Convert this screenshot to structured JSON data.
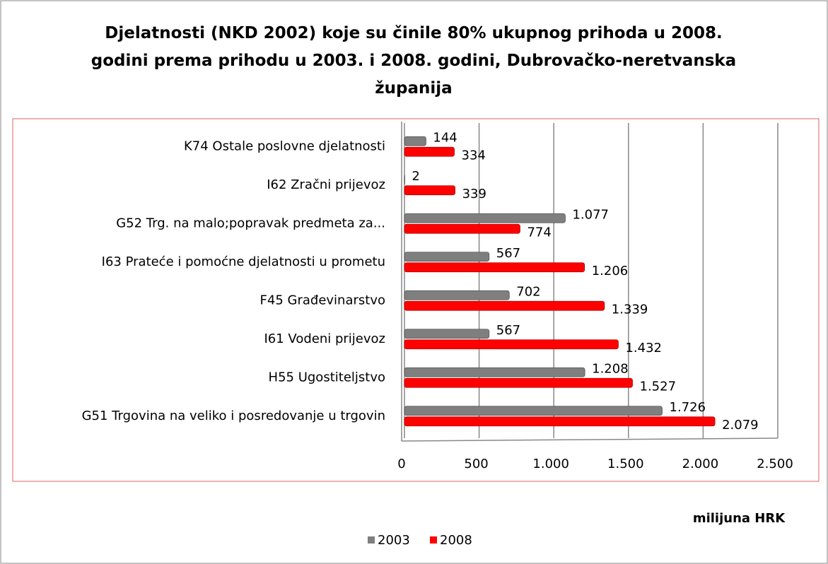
{
  "chart_data": {
    "type": "hbar",
    "title": "Djelatnosti (NKD 2002) koje su činile 80% ukupnog prihoda u 2008. godini prema prihodu u 2003. i 2008. godini, Dubrovačko-neretvanska županija",
    "x_label": "milijuna HRK",
    "categories": [
      "K74 Ostale poslovne djelatnosti",
      "I62 Zračni prijevoz",
      "G52 Trg. na malo;popravak predmeta za...",
      "I63 Prateće i pomoćne djelatnosti u prometu",
      "F45 Građevinarstvo",
      "I61 Vodeni prijevoz",
      "H55 Ugostiteljstvo",
      "G51 Trgovina na veliko i posredovanje u trgovin"
    ],
    "series": [
      {
        "name": "2003",
        "color": "#7f7f7f",
        "values": [
          144,
          2,
          1077,
          567,
          702,
          567,
          1208,
          1726
        ],
        "value_labels": [
          "144",
          "2",
          "1.077",
          "567",
          "702",
          "567",
          "1.208",
          "1.726"
        ]
      },
      {
        "name": "2008",
        "color": "#ff0000",
        "values": [
          334,
          339,
          774,
          1206,
          1339,
          1432,
          1527,
          2079
        ],
        "value_labels": [
          "334",
          "339",
          "774",
          "1.206",
          "1.339",
          "1.432",
          "1.527",
          "2.079"
        ]
      }
    ],
    "xlim": [
      0,
      2500
    ],
    "xticks": [
      0,
      500,
      {
        "value": 1000,
        "label": "1.000"
      },
      {
        "value": 1500,
        "label": "1.500"
      },
      {
        "value": 2000,
        "label": "2.000"
      },
      {
        "value": 2500,
        "label": "2.500"
      }
    ],
    "grid": true,
    "legend": "bottom"
  }
}
